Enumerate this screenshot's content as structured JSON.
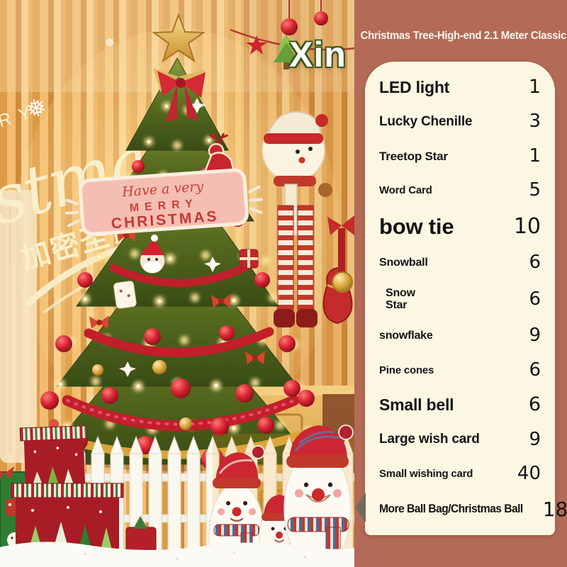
{
  "header": {
    "title": "Christmas Tree-High-end 2.1 Meter Classic"
  },
  "watermark": {
    "brand": "Xin"
  },
  "photo": {
    "wall": {
      "merry_fragment": "RRY",
      "script_fragment": "stmas",
      "chinese_text": "加密圣诞树",
      "snowflake_glyph": "❅"
    },
    "sign": {
      "line1": "Have a very",
      "line2": "MERRY",
      "line3": "CHRISTMAS"
    }
  },
  "panel": {
    "items": [
      {
        "label": "LED light",
        "qty": "1",
        "size": "lg"
      },
      {
        "label": "Lucky Chenille",
        "qty": "3",
        "size": "md"
      },
      {
        "label": "Treetop Star",
        "qty": "1",
        "size": "tsm"
      },
      {
        "label": "Word Card",
        "qty": "5",
        "size": "xs"
      },
      {
        "label": "bow tie",
        "qty": "10",
        "size": "xl"
      },
      {
        "label": "Snowball",
        "qty": "6",
        "size": "sm"
      },
      {
        "label": "Snow\nStar",
        "qty": "6",
        "size": "sm",
        "indent": true
      },
      {
        "label": "snowflake",
        "qty": "9",
        "size": "sm"
      },
      {
        "label": "Pine cones",
        "qty": "6",
        "size": "xs"
      },
      {
        "label": "Small bell",
        "qty": "6",
        "size": "lg"
      },
      {
        "label": "Large wish card",
        "qty": "9",
        "size": "md"
      },
      {
        "label": "Small wishing card",
        "qty": "40",
        "size": "xs"
      },
      {
        "label": "More Ball Bag/Christmas Ball",
        "qty": "18",
        "size": "cond"
      }
    ]
  },
  "colors": {
    "side_background": "#b36a56",
    "panel_background": "#fbf7e3",
    "title_color": "#fff6ec",
    "list_text_color": "#141414",
    "tree_green": "#55691f",
    "ornament_red": "#c6202e",
    "gold": "#d9a43a"
  }
}
